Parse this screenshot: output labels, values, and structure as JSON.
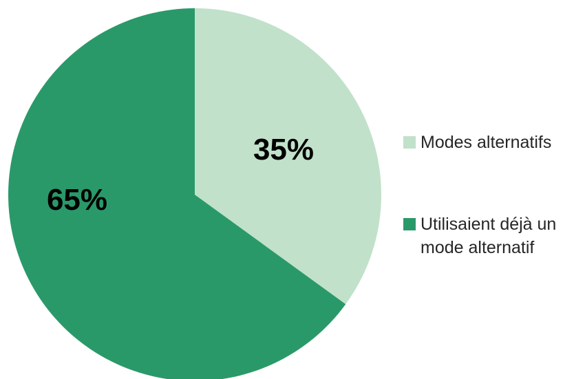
{
  "chart_data": {
    "type": "pie",
    "title": "",
    "slices": [
      {
        "label": "Modes alternatifs",
        "value": 35,
        "display": "35%",
        "color": "#c1e1ca"
      },
      {
        "label": "Utilisaient déjà un mode alternatif",
        "value": 65,
        "display": "65%",
        "color": "#2a9969"
      }
    ],
    "start_angle": "12 o'clock",
    "direction": "clockwise",
    "legend_position": "right"
  },
  "legend": {
    "items": [
      {
        "label": "Modes alternatifs",
        "color": "#c1e1ca"
      },
      {
        "label": "Utilisaient déjà un mode alternatif",
        "color": "#2a9969"
      }
    ]
  }
}
